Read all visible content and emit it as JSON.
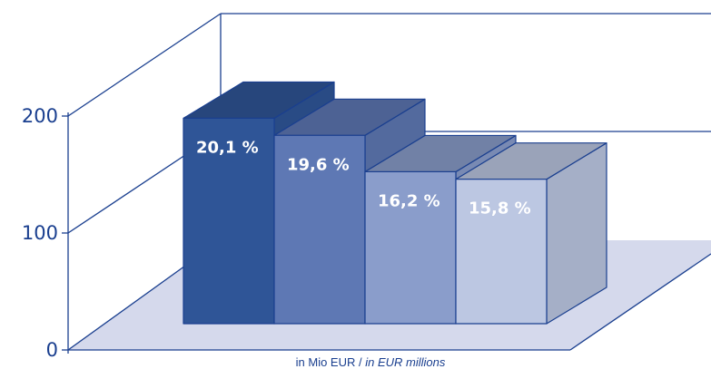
{
  "chart_data": {
    "type": "bar",
    "style": "3d",
    "categories": [
      "",
      "",
      "",
      ""
    ],
    "values": [
      192,
      176,
      142,
      135
    ],
    "data_labels": [
      "20,1 %",
      "19,6 %",
      "16,2 %",
      "15,8 %"
    ],
    "bar_colors": [
      "#2f5597",
      "#5e78b4",
      "#8a9dcb",
      "#bcc7e2"
    ],
    "ylim": [
      0,
      250
    ],
    "yticks": [
      {
        "value": 0,
        "label": "0"
      },
      {
        "value": 100,
        "label": "100"
      },
      {
        "value": 200,
        "label": "200"
      }
    ],
    "xlabel_main": "in Mio EUR / ",
    "xlabel_italic": "in EUR millions",
    "grid": false,
    "floor_color": "#d5d9ec",
    "line_color": "#1a3f8f"
  }
}
